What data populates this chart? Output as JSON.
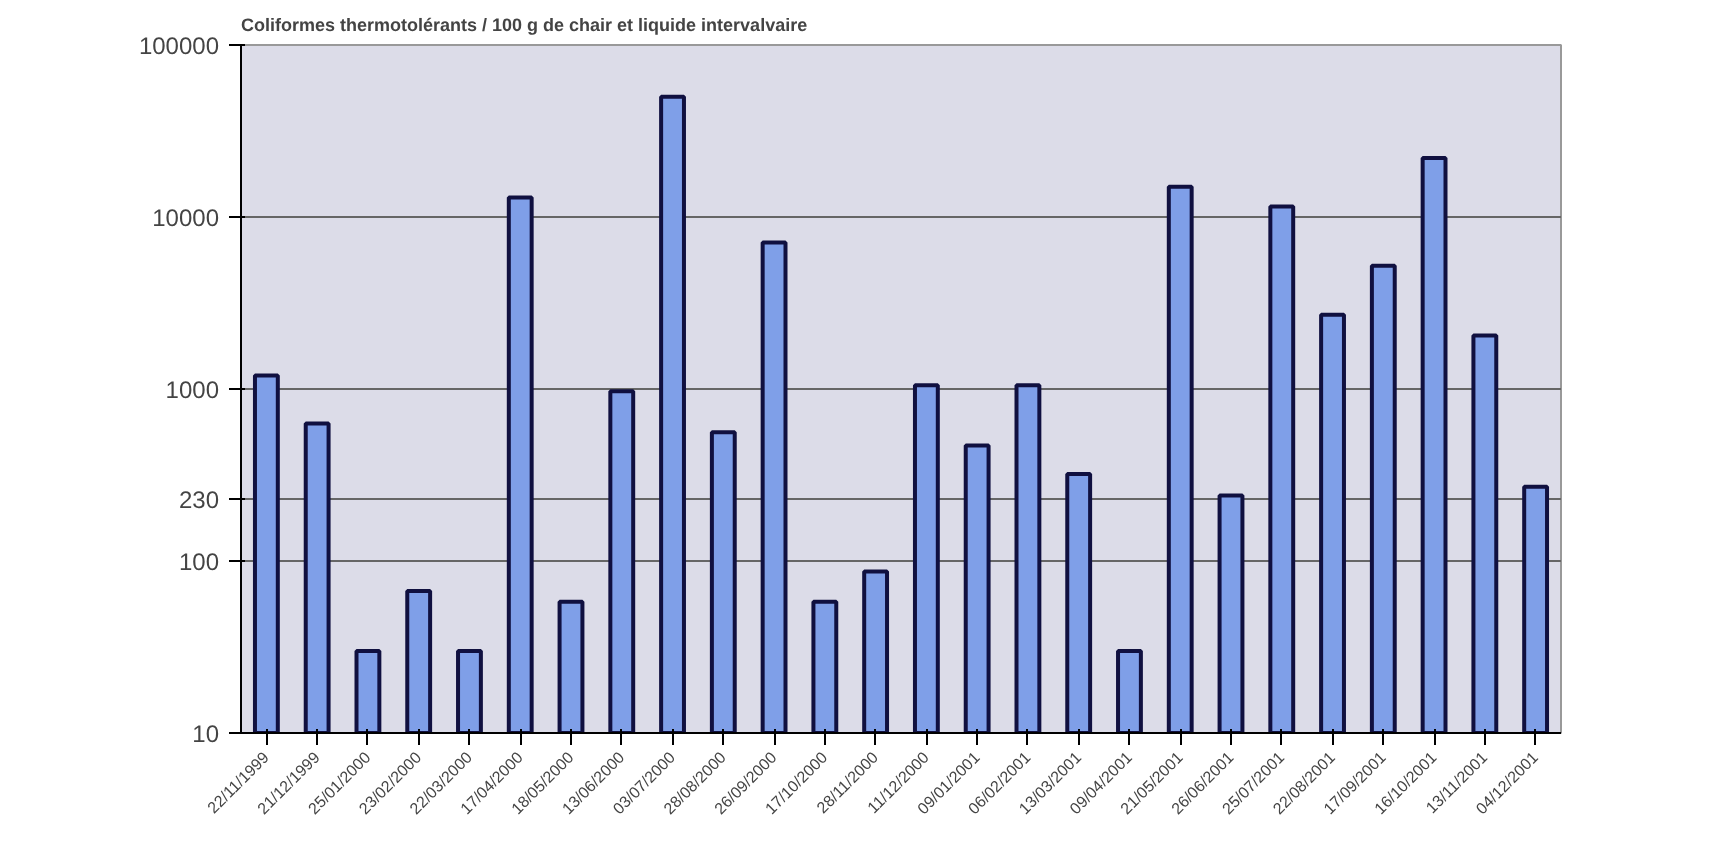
{
  "chart_data": {
    "type": "bar",
    "title": "Coliformes thermotolérants / 100 g de chair et liquide intervalvaire",
    "categories": [
      "22/11/1999",
      "21/12/1999",
      "25/01/2000",
      "23/02/2000",
      "22/03/2000",
      "17/04/2000",
      "18/05/2000",
      "13/06/2000",
      "03/07/2000",
      "28/08/2000",
      "26/09/2000",
      "17/10/2000",
      "28/11/2000",
      "11/12/2000",
      "09/01/2001",
      "06/02/2001",
      "13/03/2001",
      "09/04/2001",
      "21/05/2001",
      "26/06/2001",
      "25/07/2001",
      "22/08/2001",
      "17/09/2001",
      "16/10/2001",
      "13/11/2001",
      "04/12/2001"
    ],
    "values": [
      1200,
      630,
      30,
      67,
      30,
      13000,
      58,
      970,
      50000,
      560,
      7100,
      58,
      87,
      1050,
      470,
      1050,
      320,
      30,
      15000,
      240,
      11500,
      2700,
      5200,
      22000,
      2050,
      270
    ],
    "color": "#7f9fe8",
    "log": true,
    "ylim": [
      10,
      100000
    ],
    "yticks": [
      10,
      100,
      230,
      1000,
      10000,
      100000
    ],
    "grid": "y"
  }
}
